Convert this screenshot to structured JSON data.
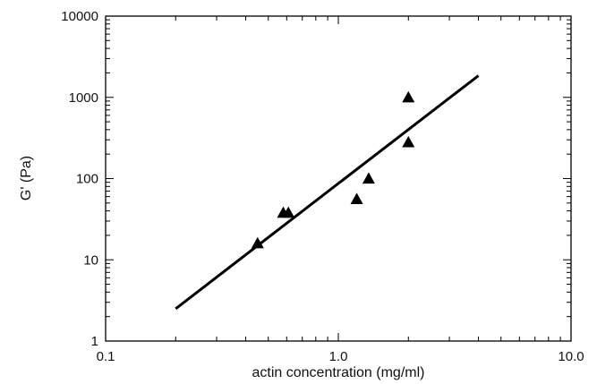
{
  "chart_data": {
    "type": "scatter",
    "xscale": "log",
    "yscale": "log",
    "xlim": [
      0.1,
      10.0
    ],
    "ylim": [
      1,
      10000
    ],
    "xlabel": "actin concentration (mg/ml)",
    "ylabel": "G' (Pa)",
    "x_ticks": [
      0.1,
      1.0,
      10.0
    ],
    "x_tick_labels": [
      "0.1",
      "1.0",
      "10.0"
    ],
    "y_ticks": [
      1,
      10,
      100,
      1000,
      10000
    ],
    "y_tick_labels": [
      "1",
      "10",
      "100",
      "1000",
      "10000"
    ],
    "grid": false,
    "series": [
      {
        "marker": "triangle",
        "color": "#000000",
        "x": [
          0.45,
          0.58,
          0.61,
          1.2,
          1.35,
          2.0,
          2.0
        ],
        "y": [
          16,
          38,
          38,
          56,
          100,
          280,
          1000
        ]
      }
    ],
    "fit_line": {
      "color": "#000000",
      "x": [
        0.2,
        4.0
      ],
      "y": [
        2.5,
        1850
      ]
    }
  }
}
